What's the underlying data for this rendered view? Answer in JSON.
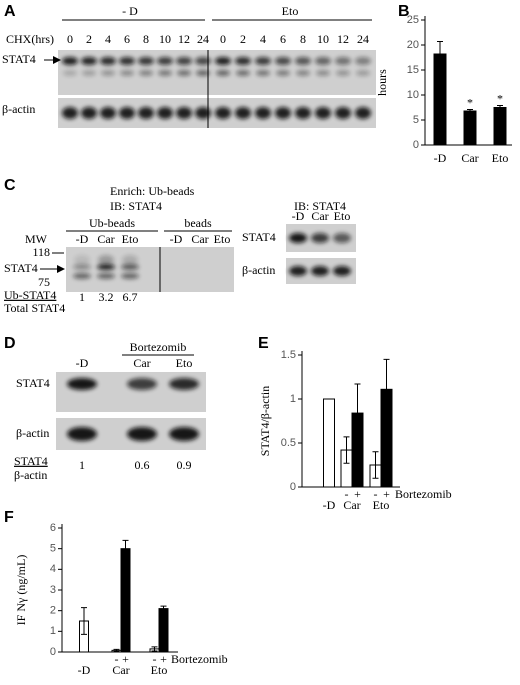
{
  "panels": {
    "A": {
      "label": "A",
      "groups": [
        "- D",
        "Eto"
      ],
      "axis_label": "CHX(hrs)",
      "lanes": [
        0,
        2,
        4,
        6,
        8,
        10,
        12,
        24
      ],
      "rows": [
        "STAT4",
        "β-actin"
      ]
    },
    "C": {
      "label": "C",
      "enrich": "Enrich: Ub-beads",
      "ib": "IB: STAT4",
      "groups": [
        "Ub-beads",
        "beads"
      ],
      "lanes": [
        "-D",
        "Car",
        "Eto"
      ],
      "mw_label": "MW",
      "mw": [
        118,
        75
      ],
      "band": "STAT4",
      "ratio_numerator": "Ub-STAT4",
      "ratio_denominator": "Total STAT4",
      "ratios": [
        1,
        3.2,
        6.7
      ],
      "inset": {
        "ib": "IB: STAT4",
        "lanes": [
          "-D",
          "Car",
          "Eto"
        ],
        "rows": [
          "STAT4",
          "β-actin"
        ]
      }
    },
    "D": {
      "label": "D",
      "treatment": "Bortezomib",
      "lanes": [
        "-D",
        "Car",
        "Eto"
      ],
      "rows": [
        "STAT4",
        "β-actin"
      ],
      "ratio_numerator": "STAT4",
      "ratio_denominator": "β-actin",
      "ratios": [
        1,
        0.6,
        0.9
      ]
    }
  },
  "chart_data": [
    {
      "type": "bar",
      "panel": "B",
      "y_label": "hours",
      "categories": [
        "-D",
        "Car",
        "Eto"
      ],
      "series": [
        {
          "color": "#000000",
          "values": [
            18.2,
            6.8,
            7.5
          ],
          "errors": [
            2.5,
            0.3,
            0.4
          ]
        }
      ],
      "annotations": [
        null,
        "*",
        "*"
      ],
      "ylim": [
        0,
        25
      ],
      "yticks": [
        0,
        5,
        10,
        15,
        20,
        25
      ]
    },
    {
      "type": "bar",
      "panel": "E",
      "y_label": "STAT4/β-actin",
      "categories": [
        "-D",
        "Car",
        "Eto"
      ],
      "treatment": "Bortezomib",
      "series": [
        {
          "name": "-",
          "color": "#ffffff",
          "values": [
            1,
            0.42,
            0.25
          ],
          "errors": [
            null,
            0.15,
            0.15
          ]
        },
        {
          "name": "+",
          "color": "#000000",
          "values": [
            null,
            0.84,
            1.11
          ],
          "errors": [
            null,
            0.33,
            0.34
          ]
        }
      ],
      "ylim": [
        0,
        1.5
      ],
      "yticks": [
        0,
        0.5,
        1,
        1.5
      ]
    },
    {
      "type": "bar",
      "panel": "F",
      "y_label": "IF Nγ (ng/mL)",
      "categories": [
        "-D",
        "Car",
        "Eto"
      ],
      "treatment": "Bortezomib",
      "series": [
        {
          "name": "-",
          "color": "#ffffff",
          "values": [
            1.5,
            0.08,
            0.15
          ],
          "errors": [
            0.65,
            0.05,
            0.1
          ]
        },
        {
          "name": "+",
          "color": "#000000",
          "values": [
            null,
            5.0,
            2.1
          ],
          "errors": [
            null,
            0.4,
            0.12
          ]
        }
      ],
      "ylim": [
        0,
        6
      ],
      "yticks": [
        0,
        1,
        2,
        3,
        4,
        5,
        6
      ]
    }
  ]
}
